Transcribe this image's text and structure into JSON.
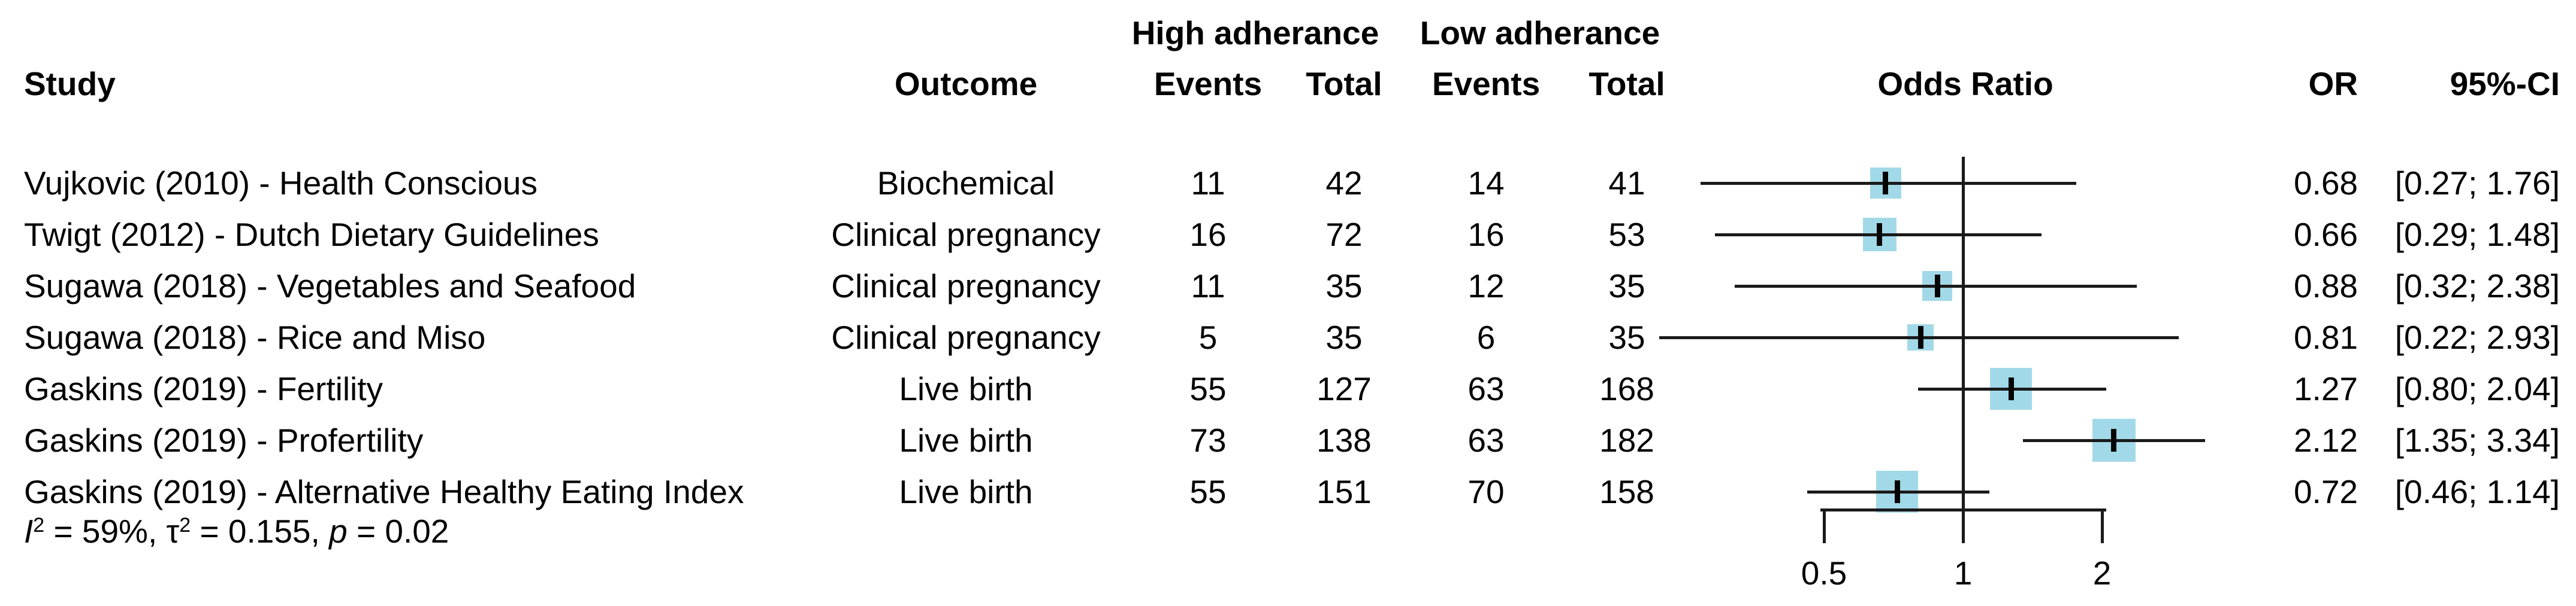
{
  "figure": {
    "headers": {
      "group_high": "High adherance",
      "group_low": "Low adherance",
      "study": "Study",
      "outcome": "Outcome",
      "events": "Events",
      "total": "Total",
      "odds_ratio": "Odds Ratio",
      "or": "OR",
      "ci": "95%-CI"
    },
    "axis_ticks": [
      "0.5",
      "1",
      "2"
    ],
    "footer": {
      "segments": [
        {
          "t": "I",
          "s": "it"
        },
        {
          "t": "2",
          "s": "sup"
        },
        {
          "t": " = 59%, τ",
          "s": ""
        },
        {
          "t": "2",
          "s": "sup"
        },
        {
          "t": " = 0.155, ",
          "s": ""
        },
        {
          "t": "p",
          "s": "it"
        },
        {
          "t": " = 0.02",
          "s": ""
        }
      ]
    }
  },
  "chart_data": {
    "type": "forest",
    "title": "",
    "xlabel": "",
    "x_scale": "log",
    "x_ticks": [
      0.5,
      1,
      2
    ],
    "x_tick_labels": [
      "0.5",
      "1",
      "2"
    ],
    "reference_line": 1,
    "square_color": "#a2d9e8",
    "line_color": "#1a1a1a",
    "studies": [
      {
        "study": "Vujkovic (2010) - Health Conscious",
        "outcome": "Biochemical",
        "high_events": "11",
        "high_total": "42",
        "low_events": "14",
        "low_total": "41",
        "or": 0.68,
        "ci_low": 0.27,
        "ci_high": 1.76,
        "or_label": "0.68",
        "ci_label": "[0.27; 1.76]",
        "square_size": 52
      },
      {
        "study": "Twigt (2012) - Dutch Dietary Guidelines",
        "outcome": "Clinical pregnancy",
        "high_events": "16",
        "high_total": "72",
        "low_events": "16",
        "low_total": "53",
        "or": 0.66,
        "ci_low": 0.29,
        "ci_high": 1.48,
        "or_label": "0.66",
        "ci_label": "[0.29; 1.48]",
        "square_size": 56
      },
      {
        "study": "Sugawa (2018) - Vegetables and Seafood",
        "outcome": "Clinical pregnancy",
        "high_events": "11",
        "high_total": "35",
        "low_events": "12",
        "low_total": "35",
        "or": 0.88,
        "ci_low": 0.32,
        "ci_high": 2.38,
        "or_label": "0.88",
        "ci_label": "[0.32; 2.38]",
        "square_size": 50
      },
      {
        "study": "Sugawa (2018) - Rice and Miso",
        "outcome": "Clinical pregnancy",
        "high_events": "5",
        "high_total": "35",
        "low_events": "6",
        "low_total": "35",
        "or": 0.81,
        "ci_low": 0.22,
        "ci_high": 2.93,
        "or_label": "0.81",
        "ci_label": "[0.22; 2.93]",
        "square_size": 44
      },
      {
        "study": "Gaskins (2019) - Fertility",
        "outcome": "Live birth",
        "high_events": "55",
        "high_total": "127",
        "low_events": "63",
        "low_total": "168",
        "or": 1.27,
        "ci_low": 0.8,
        "ci_high": 2.04,
        "or_label": "1.27",
        "ci_label": "[0.80; 2.04]",
        "square_size": 70
      },
      {
        "study": "Gaskins (2019) - Profertility",
        "outcome": "Live birth",
        "high_events": "73",
        "high_total": "138",
        "low_events": "63",
        "low_total": "182",
        "or": 2.12,
        "ci_low": 1.35,
        "ci_high": 3.34,
        "or_label": "2.12",
        "ci_label": "[1.35; 3.34]",
        "square_size": 72
      },
      {
        "study": "Gaskins (2019) - Alternative Healthy Eating Index",
        "outcome": "Live birth",
        "high_events": "55",
        "high_total": "151",
        "low_events": "70",
        "low_total": "158",
        "or": 0.72,
        "ci_low": 0.46,
        "ci_high": 1.14,
        "or_label": "0.72",
        "ci_label": "[0.46; 1.14]",
        "square_size": 70
      }
    ],
    "heterogeneity": {
      "I2": "59%",
      "tau2": "0.155",
      "p": "0.02"
    }
  }
}
